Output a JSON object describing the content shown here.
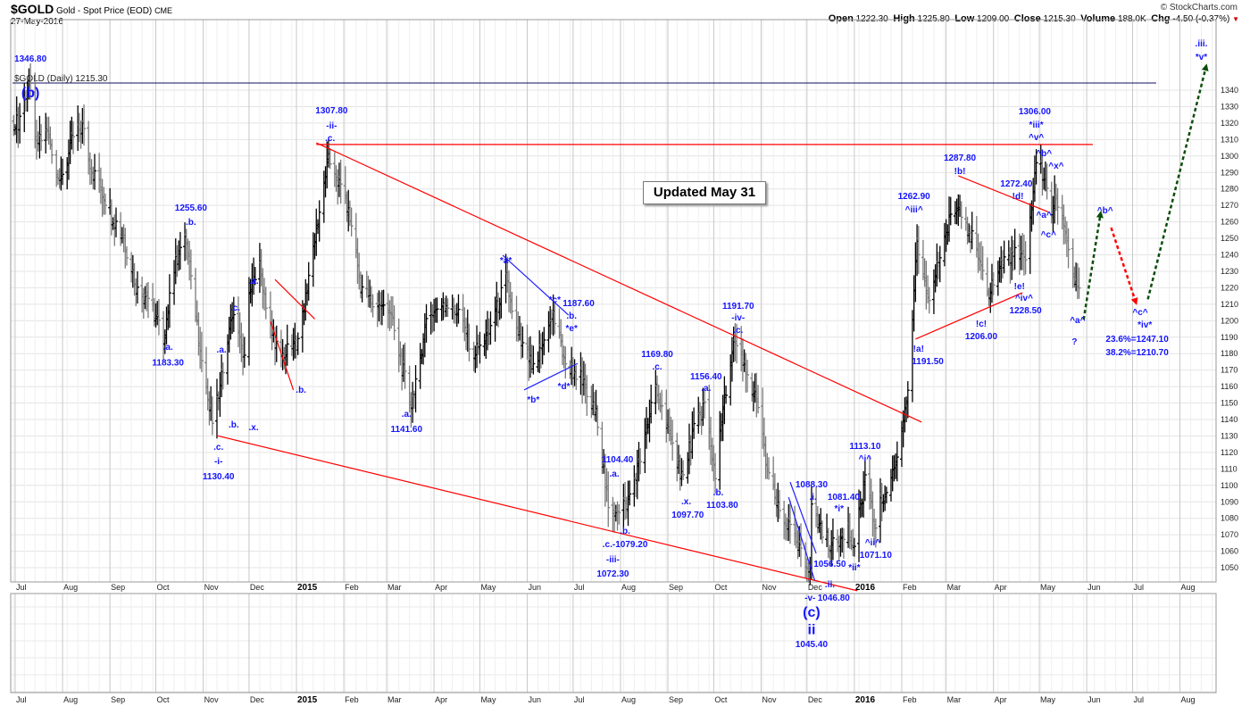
{
  "header": {
    "symbol": "$GOLD",
    "name": "Gold - Spot Price (EOD)",
    "exchange": "CME",
    "date": "27-May-2016",
    "copyright": "© StockCharts.com",
    "open_label": "Open",
    "open": "1222.30",
    "high_label": "High",
    "high": "1225.80",
    "low_label": "Low",
    "low": "1209.00",
    "close_label": "Close",
    "close": "1215.30",
    "volume_label": "Volume",
    "volume": "188.0K",
    "chg_label": "Chg",
    "chg": "-4.50 (-0.37%)",
    "chg_direction_icon": "down-triangle-icon",
    "chg_color": "#cc0000"
  },
  "overlay_note": "Updated May 31",
  "chart_data": {
    "type": "ohlc",
    "legend": "$GOLD (Daily) 1215.30",
    "ylim": [
      1041,
      1383
    ],
    "xlim": [
      "2014-06-28",
      "2016-08-25"
    ],
    "yticks": [
      1050,
      1060,
      1070,
      1080,
      1090,
      1100,
      1110,
      1120,
      1130,
      1140,
      1150,
      1160,
      1170,
      1180,
      1190,
      1200,
      1210,
      1220,
      1230,
      1240,
      1250,
      1260,
      1270,
      1280,
      1290,
      1300,
      1310,
      1320,
      1330,
      1340
    ],
    "xticks": [
      {
        "label": "Jul",
        "date": "2014-07-01"
      },
      {
        "label": "Aug",
        "date": "2014-08-01"
      },
      {
        "label": "Sep",
        "date": "2014-09-01"
      },
      {
        "label": "Oct",
        "date": "2014-10-01"
      },
      {
        "label": "Nov",
        "date": "2014-11-01"
      },
      {
        "label": "Dec",
        "date": "2014-12-01"
      },
      {
        "label": "2015",
        "date": "2015-01-01",
        "year": true
      },
      {
        "label": "Feb",
        "date": "2015-02-01"
      },
      {
        "label": "Mar",
        "date": "2015-03-01"
      },
      {
        "label": "Apr",
        "date": "2015-04-01"
      },
      {
        "label": "May",
        "date": "2015-05-01"
      },
      {
        "label": "Jun",
        "date": "2015-06-01"
      },
      {
        "label": "Jul",
        "date": "2015-07-01"
      },
      {
        "label": "Aug",
        "date": "2015-08-01"
      },
      {
        "label": "Sep",
        "date": "2015-09-01"
      },
      {
        "label": "Oct",
        "date": "2015-10-01"
      },
      {
        "label": "Nov",
        "date": "2015-11-01"
      },
      {
        "label": "Dec",
        "date": "2015-12-01"
      },
      {
        "label": "2016",
        "date": "2016-01-01",
        "year": true
      },
      {
        "label": "Feb",
        "date": "2016-02-01"
      },
      {
        "label": "Mar",
        "date": "2016-03-01"
      },
      {
        "label": "Apr",
        "date": "2016-04-01"
      },
      {
        "label": "May",
        "date": "2016-05-01"
      },
      {
        "label": "Jun",
        "date": "2016-06-01"
      },
      {
        "label": "Jul",
        "date": "2016-07-01"
      },
      {
        "label": "Aug",
        "date": "2016-08-01"
      }
    ],
    "grid": true,
    "bar_color": "#000000",
    "down_bar_color": "#7a7a7a",
    "price_path": [
      [
        "2014-06-30",
        1322
      ],
      [
        "2014-07-03",
        1320
      ],
      [
        "2014-07-10",
        1345
      ],
      [
        "2014-07-14",
        1305
      ],
      [
        "2014-07-22",
        1315
      ],
      [
        "2014-07-31",
        1283
      ],
      [
        "2014-08-08",
        1312
      ],
      [
        "2014-08-14",
        1318
      ],
      [
        "2014-08-20",
        1292
      ],
      [
        "2014-09-02",
        1265
      ],
      [
        "2014-09-10",
        1250
      ],
      [
        "2014-09-19",
        1218
      ],
      [
        "2014-09-26",
        1215
      ],
      [
        "2014-10-06",
        1190
      ],
      [
        "2014-10-14",
        1235
      ],
      [
        "2014-10-21",
        1252
      ],
      [
        "2014-10-31",
        1171
      ],
      [
        "2014-11-07",
        1140
      ],
      [
        "2014-11-12",
        1160
      ],
      [
        "2014-11-18",
        1196
      ],
      [
        "2014-11-21",
        1200
      ],
      [
        "2014-11-28",
        1175
      ],
      [
        "2014-12-01",
        1215
      ],
      [
        "2014-12-08",
        1232
      ],
      [
        "2014-12-15",
        1195
      ],
      [
        "2014-12-22",
        1178
      ],
      [
        "2014-12-31",
        1185
      ],
      [
        "2015-01-06",
        1210
      ],
      [
        "2015-01-22",
        1300
      ],
      [
        "2015-01-30",
        1280
      ],
      [
        "2015-02-05",
        1262
      ],
      [
        "2015-02-12",
        1222
      ],
      [
        "2015-02-20",
        1210
      ],
      [
        "2015-03-03",
        1206
      ],
      [
        "2015-03-17",
        1148
      ],
      [
        "2015-03-27",
        1200
      ],
      [
        "2015-04-07",
        1212
      ],
      [
        "2015-04-17",
        1205
      ],
      [
        "2015-04-27",
        1180
      ],
      [
        "2015-05-06",
        1190
      ],
      [
        "2015-05-18",
        1225
      ],
      [
        "2015-05-26",
        1190
      ],
      [
        "2015-06-05",
        1170
      ],
      [
        "2015-06-18",
        1203
      ],
      [
        "2015-06-26",
        1175
      ],
      [
        "2015-07-06",
        1165
      ],
      [
        "2015-07-17",
        1140
      ],
      [
        "2015-07-24",
        1085
      ],
      [
        "2015-08-05",
        1088
      ],
      [
        "2015-08-14",
        1115
      ],
      [
        "2015-08-24",
        1160
      ],
      [
        "2015-09-03",
        1125
      ],
      [
        "2015-09-11",
        1105
      ],
      [
        "2015-09-18",
        1135
      ],
      [
        "2015-09-25",
        1150
      ],
      [
        "2015-10-02",
        1105
      ],
      [
        "2015-10-07",
        1145
      ],
      [
        "2015-10-14",
        1185
      ],
      [
        "2015-10-22",
        1170
      ],
      [
        "2015-10-29",
        1150
      ],
      [
        "2015-11-05",
        1110
      ],
      [
        "2015-11-12",
        1085
      ],
      [
        "2015-11-19",
        1075
      ],
      [
        "2015-11-27",
        1058
      ],
      [
        "2015-12-03",
        1050
      ],
      [
        "2015-12-04",
        1085
      ],
      [
        "2015-12-10",
        1075
      ],
      [
        "2015-12-17",
        1062
      ],
      [
        "2015-12-28",
        1075
      ],
      [
        "2015-12-31",
        1060
      ],
      [
        "2016-01-08",
        1105
      ],
      [
        "2016-01-14",
        1075
      ],
      [
        "2016-01-22",
        1100
      ],
      [
        "2016-01-29",
        1115
      ],
      [
        "2016-02-05",
        1160
      ],
      [
        "2016-02-11",
        1245
      ],
      [
        "2016-02-18",
        1210
      ],
      [
        "2016-02-25",
        1235
      ],
      [
        "2016-03-03",
        1260
      ],
      [
        "2016-03-10",
        1270
      ],
      [
        "2016-03-18",
        1250
      ],
      [
        "2016-03-28",
        1215
      ],
      [
        "2016-04-06",
        1235
      ],
      [
        "2016-04-15",
        1240
      ],
      [
        "2016-04-22",
        1235
      ],
      [
        "2016-04-29",
        1295
      ],
      [
        "2016-05-03",
        1290
      ],
      [
        "2016-05-09",
        1265
      ],
      [
        "2016-05-12",
        1275
      ],
      [
        "2016-05-18",
        1255
      ],
      [
        "2016-05-24",
        1225
      ],
      [
        "2016-05-27",
        1215
      ]
    ],
    "trendlines": [
      {
        "color": "#ff0000",
        "from": [
          "2015-01-14",
          1307
        ],
        "to": [
          "2016-06-05",
          1307
        ]
      },
      {
        "color": "#ff0000",
        "from": [
          "2015-01-14",
          1308
        ],
        "to": [
          "2016-02-14",
          1138.4
        ]
      },
      {
        "color": "#ff0000",
        "from": [
          "2014-11-10",
          1130.2
        ],
        "to": [
          "2016-01-03",
          1036
        ]
      },
      {
        "color": "#ff0000",
        "from": [
          "2014-12-18",
          1225
        ],
        "to": [
          "2015-01-13",
          1201
        ]
      },
      {
        "color": "#ff0000",
        "from": [
          "2014-12-15",
          1199.6
        ],
        "to": [
          "2014-12-30",
          1157.9
        ]
      },
      {
        "color": "#ff0000",
        "from": [
          "2016-03-09",
          1288
        ],
        "to": [
          "2016-05-07",
          1266
        ]
      },
      {
        "color": "#ff0000",
        "from": [
          "2016-02-10",
          1188.8
        ],
        "to": [
          "2016-04-20",
          1217
        ]
      },
      {
        "color": "#2020ff",
        "from": [
          "2015-05-16",
          1239.7
        ],
        "to": [
          "2015-06-28",
          1203.4
        ]
      },
      {
        "color": "#2020ff",
        "from": [
          "2015-05-30",
          1158
        ],
        "to": [
          "2015-07-04",
          1174
        ]
      },
      {
        "color": "#2020ff",
        "from": [
          "2015-11-19",
          1092.8
        ],
        "to": [
          "2015-12-06",
          1042.4
        ]
      },
      {
        "color": "#2020ff",
        "from": [
          "2015-11-20",
          1102
        ],
        "to": [
          "2015-12-07",
          1058.7
        ]
      }
    ],
    "forecast_arrows": [
      {
        "color": "#0b4d0b",
        "from": [
          "2016-05-30",
          1200.7
        ],
        "to": [
          "2016-06-10",
          1264.7
        ]
      },
      {
        "color": "#ff0000",
        "from": [
          "2016-06-17",
          1256.5
        ],
        "to": [
          "2016-07-03",
          1211.5
        ]
      },
      {
        "color": "#0b4d0b",
        "from": [
          "2016-07-11",
          1213
        ],
        "to": [
          "2016-08-18",
          1354
        ]
      }
    ],
    "annotations": [
      {
        "t": "1346.80",
        "d": "2014-07-11",
        "p": 1359.5
      },
      {
        "t": "(b)",
        "d": "2014-07-11",
        "p": 1350.8,
        "big": true
      },
      {
        "t": "1255.60",
        "d": "2014-10-24",
        "p": 1269
      },
      {
        "t": ".b.",
        "d": "2014-10-24",
        "p": 1260.3
      },
      {
        "t": ".a.",
        "d": "2014-10-09",
        "p": 1184.4
      },
      {
        "t": "1183.30",
        "d": "2014-10-09",
        "p": 1175
      },
      {
        "t": ".a.",
        "d": "2014-11-13",
        "p": 1182.8
      },
      {
        "t": ".c.",
        "d": "2014-11-11",
        "p": 1123.7
      },
      {
        "t": "-i-",
        "d": "2014-11-11",
        "p": 1115
      },
      {
        "t": "1130.40",
        "d": "2014-11-11",
        "p": 1105.9
      },
      {
        "t": ".b.",
        "d": "2014-11-21",
        "p": 1137.3
      },
      {
        "t": ".c.",
        "d": "2014-11-22",
        "p": 1208.3
      },
      {
        "t": ".a.",
        "d": "2014-12-04",
        "p": 1224.6
      },
      {
        "t": ".x.",
        "d": "2014-12-04",
        "p": 1135.7
      },
      {
        "t": ".b.",
        "d": "2015-01-04",
        "p": 1158.4
      },
      {
        "t": "1307.80",
        "d": "2015-01-24",
        "p": 1328
      },
      {
        "t": "-ii-",
        "d": "2015-01-24",
        "p": 1318.9
      },
      {
        "t": ".c.",
        "d": "2015-01-23",
        "p": 1311.3
      },
      {
        "t": ".a.",
        "d": "2015-03-14",
        "p": 1143.8
      },
      {
        "t": "1141.60",
        "d": "2015-03-14",
        "p": 1134.6
      },
      {
        "t": "*a*",
        "d": "2015-05-18",
        "p": 1237
      },
      {
        "t": "*b*",
        "d": "2015-06-05",
        "p": 1152.5
      },
      {
        "t": "*c*",
        "d": "2015-06-19",
        "p": 1213.2
      },
      {
        "t": "1187.60",
        "d": "2015-07-04",
        "p": 1211
      },
      {
        "t": ".b.",
        "d": "2015-06-30",
        "p": 1204
      },
      {
        "t": "*e*",
        "d": "2015-06-30",
        "p": 1195.8
      },
      {
        "t": "*d*",
        "d": "2015-06-25",
        "p": 1160.6
      },
      {
        "t": "1104.40",
        "d": "2015-07-30",
        "p": 1116.2
      },
      {
        "t": ".a.",
        "d": "2015-07-28",
        "p": 1107.5
      },
      {
        "t": ".b.",
        "d": "2015-08-04",
        "p": 1072.8
      },
      {
        "t": ".c.-1079.20",
        "d": "2015-08-04",
        "p": 1064.7
      },
      {
        "t": "-iii-",
        "d": "2015-07-27",
        "p": 1055.4
      },
      {
        "t": "1072.30",
        "d": "2015-07-27",
        "p": 1046.8
      },
      {
        "t": "1169.80",
        "d": "2015-08-25",
        "p": 1180
      },
      {
        "t": ".c.",
        "d": "2015-08-25",
        "p": 1173.6
      },
      {
        "t": ".x.",
        "d": "2015-09-13",
        "p": 1090.7
      },
      {
        "t": "1097.70",
        "d": "2015-09-14",
        "p": 1082.5
      },
      {
        "t": "1156.40",
        "d": "2015-09-26",
        "p": 1166.6
      },
      {
        "t": ".a.",
        "d": "2015-09-26",
        "p": 1160.6
      },
      {
        "t": ".b.",
        "d": "2015-10-04",
        "p": 1096.1
      },
      {
        "t": "1103.80",
        "d": "2015-10-06",
        "p": 1088.5
      },
      {
        "t": "1191.70",
        "d": "2015-10-17",
        "p": 1209.4
      },
      {
        "t": "-iv-",
        "d": "2015-10-17",
        "p": 1202.3
      },
      {
        "t": ".c.",
        "d": "2015-10-17",
        "p": 1195.3
      },
      {
        "t": "1088.30",
        "d": "2015-12-04",
        "p": 1101
      },
      {
        "t": ".i.",
        "d": "2015-12-05",
        "p": 1093.4
      },
      {
        "t": "1081.40",
        "d": "2015-12-25",
        "p": 1094
      },
      {
        "t": "*i*",
        "d": "2015-12-22",
        "p": 1086.3
      },
      {
        "t": "*ii*",
        "d": "2016-01-01",
        "p": 1050.6
      },
      {
        "t": "1056.50",
        "d": "2015-12-27",
        "p": 1042.4
      },
      {
        "t": ".ii.",
        "d": "2015-12-16",
        "p": 1040.3
      },
      {
        "t": "-v-",
        "d": "2015-12-03",
        "p": 1033.2
      },
      {
        "t": "1046.80",
        "d": "2015-12-15",
        "p": 1032.1
      },
      {
        "t": "(c)",
        "d": "2015-12-04",
        "p": 1025,
        "big": true
      },
      {
        "t": "ii",
        "d": "2015-12-04",
        "p": 1014,
        "big": true
      },
      {
        "t": "1045.40",
        "d": "2015-12-04",
        "p": 1006.7
      },
      {
        "t": "1113.10",
        "d": "2016-01-08",
        "p": 1124.3
      },
      {
        "t": "^i^",
        "d": "2016-01-08",
        "p": 1116.7
      },
      {
        "t": "^ii^",
        "d": "2016-01-13",
        "p": 1065.7
      },
      {
        "t": "1071.10",
        "d": "2016-01-15",
        "p": 1057.6
      },
      {
        "t": "1262.90",
        "d": "2016-02-09",
        "p": 1276
      },
      {
        "t": "^iii^",
        "d": "2016-02-09",
        "p": 1268
      },
      {
        "t": "!a!",
        "d": "2016-02-12",
        "p": 1183.4
      },
      {
        "t": "1191.50",
        "d": "2016-02-18",
        "p": 1175.8
      },
      {
        "t": "1287.80",
        "d": "2016-03-10",
        "p": 1299.4
      },
      {
        "t": "!b!",
        "d": "2016-03-10",
        "p": 1291.2
      },
      {
        "t": "!c!",
        "d": "2016-03-24",
        "p": 1198.5
      },
      {
        "t": "1206.00",
        "d": "2016-03-24",
        "p": 1191
      },
      {
        "t": "1272.40",
        "d": "2016-04-16",
        "p": 1283.6
      },
      {
        "t": "!d!",
        "d": "2016-04-17",
        "p": 1276
      },
      {
        "t": "!e!",
        "d": "2016-04-18",
        "p": 1221.3
      },
      {
        "t": "^iv^",
        "d": "2016-04-21",
        "p": 1215.3
      },
      {
        "t": "1228.50",
        "d": "2016-04-22",
        "p": 1207.8
      },
      {
        "t": "1306.00",
        "d": "2016-04-28",
        "p": 1327.5
      },
      {
        "t": "*iii*",
        "d": "2016-04-29",
        "p": 1319.4
      },
      {
        "t": "^v^",
        "d": "2016-04-29",
        "p": 1312.9
      },
      {
        "t": "^b^",
        "d": "2016-05-04",
        "p": 1302
      },
      {
        "t": "^x^",
        "d": "2016-05-12",
        "p": 1294.5
      },
      {
        "t": "^a^",
        "d": "2016-05-04",
        "p": 1264.7
      },
      {
        "t": "^c^",
        "d": "2016-05-07",
        "p": 1252.7
      },
      {
        "t": "^a^",
        "d": "2016-05-26",
        "p": 1200.7
      },
      {
        "t": "?",
        "d": "2016-05-24",
        "p": 1187.7
      },
      {
        "t": "^b^",
        "d": "2016-06-13",
        "p": 1267.4
      },
      {
        "t": "^c^",
        "d": "2016-07-06",
        "p": 1205.6
      },
      {
        "t": "*iv*",
        "d": "2016-07-09",
        "p": 1198
      },
      {
        "t": "23.6%=1247.10",
        "d": "2016-07-04",
        "p": 1189.3
      },
      {
        "t": "38.2%=1210.70",
        "d": "2016-07-04",
        "p": 1181.2
      },
      {
        "t": ".iii.",
        "d": "2016-08-15",
        "p": 1368.7
      },
      {
        "t": "*v*",
        "d": "2016-08-15",
        "p": 1360.6
      }
    ]
  }
}
